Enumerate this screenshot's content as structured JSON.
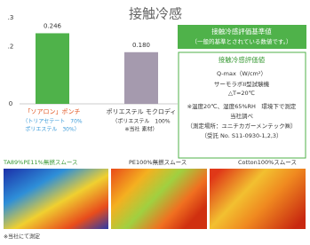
{
  "chart_data": {
    "type": "bar",
    "title": "接触冷感",
    "categories": [
      "「ソアロン」ポンチ",
      "ポリエステル モクロディ"
    ],
    "category_notes": [
      [
        "（トリアセテート　70%",
        "ポリエステル　30%）"
      ],
      [
        "（ポリエステル　100%",
        "※当社 素材）"
      ]
    ],
    "values": [
      0.246,
      0.18
    ],
    "value_labels": [
      "0.246",
      "0.180"
    ],
    "colors": [
      "#4fb24a",
      "#a59aae"
    ],
    "ylim": [
      0,
      0.3
    ],
    "yticks": [
      {
        "value": 0,
        "label": "0"
      },
      {
        "value": 0.2,
        "label": ".2"
      },
      {
        "value": 0.3,
        "label": ".3"
      }
    ]
  },
  "criteria": {
    "title": "接触冷感評価基準値",
    "subtitle": "（一般的基準とされている数値です。）"
  },
  "method": {
    "title": "接触冷感評価値",
    "unit": "Q-max（W/cm²）",
    "device": "サーモラボII型試験機",
    "delta": "△T=20℃",
    "notes": [
      "※温度20℃、湿度65%RH　環境下で測定",
      "当社調べ",
      "（測定場所：ユニチカガーメンテック㈱）",
      "（受託 No. S11-0930-1,2,3）"
    ]
  },
  "images": [
    "TA89%PE11%無撚スムース",
    "PE100%無撚スムース",
    "Cotton100%スムース"
  ],
  "footnote": "※当社にて測定"
}
